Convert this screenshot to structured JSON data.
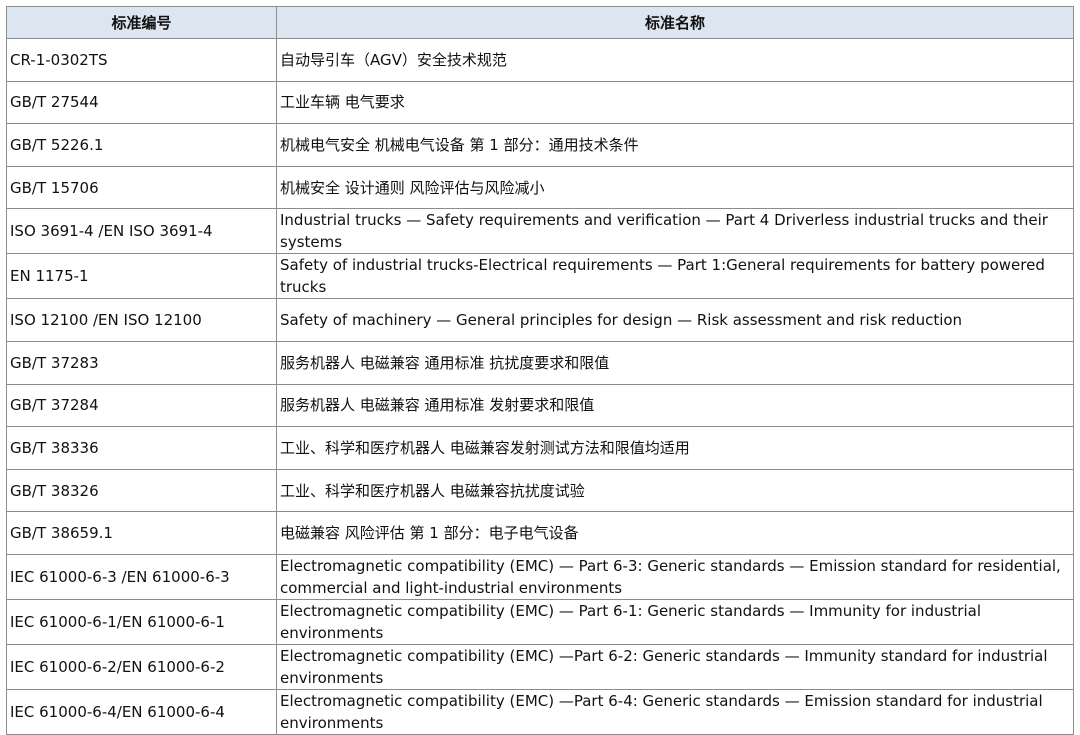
{
  "table": {
    "headers": [
      "标准编号",
      "标准名称"
    ],
    "rows": [
      [
        "CR-1-0302TS",
        "自动导引车（AGV）安全技术规范"
      ],
      [
        "GB/T 27544",
        "工业车辆 电气要求"
      ],
      [
        "GB/T 5226.1",
        "机械电气安全 机械电气设备 第 1 部分：通用技术条件"
      ],
      [
        "GB/T 15706",
        "机械安全 设计通则 风险评估与风险减小"
      ],
      [
        "ISO 3691-4 /EN ISO 3691-4",
        "Industrial trucks — Safety requirements and verification — Part 4 Driverless industrial trucks and their systems"
      ],
      [
        "EN 1175-1",
        "Safety of industrial trucks-Electrical requirements — Part 1:General requirements for battery powered trucks"
      ],
      [
        "ISO 12100 /EN ISO 12100",
        "Safety of machinery — General principles for design — Risk assessment and risk reduction"
      ],
      [
        "GB/T 37283",
        "服务机器人 电磁兼容 通用标准 抗扰度要求和限值"
      ],
      [
        "GB/T 37284",
        "服务机器人 电磁兼容 通用标准 发射要求和限值"
      ],
      [
        "GB/T 38336",
        "工业、科学和医疗机器人 电磁兼容发射测试方法和限值均适用"
      ],
      [
        "GB/T 38326",
        "工业、科学和医疗机器人 电磁兼容抗扰度试验"
      ],
      [
        "GB/T 38659.1",
        "电磁兼容 风险评估 第 1 部分：电子电气设备"
      ],
      [
        "IEC 61000-6-3 /EN 61000-6-3",
        "Electromagnetic compatibility (EMC) — Part 6-3: Generic standards — Emission standard for residential, commercial and light-industrial environments"
      ],
      [
        "IEC 61000-6-1/EN 61000-6-1",
        "Electromagnetic compatibility (EMC) — Part 6-1: Generic standards — Immunity for industrial environments"
      ],
      [
        "IEC 61000-6-2/EN 61000-6-2",
        "Electromagnetic compatibility (EMC) —Part 6-2: Generic standards — Immunity standard for industrial environments"
      ],
      [
        "IEC 61000-6-4/EN 61000-6-4",
        "Electromagnetic compatibility (EMC) —Part 6-4: Generic standards — Emission standard for industrial environments"
      ]
    ]
  },
  "colors": {
    "header_bg": "#dce6f1",
    "border": "#8c8c8c"
  }
}
